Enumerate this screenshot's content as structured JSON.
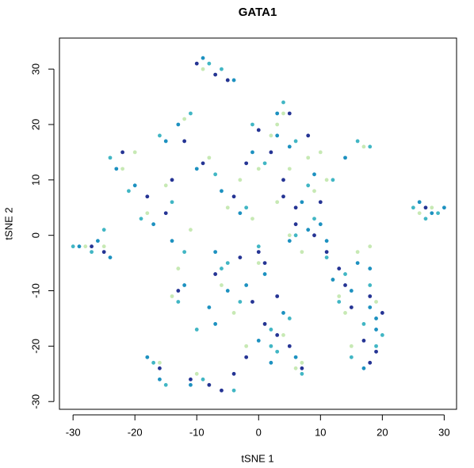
{
  "chart_data": {
    "type": "scatter",
    "title": "GATA1",
    "x_label": "tSNE 1",
    "y_label": "tSNE 2",
    "xlim": [
      -32.2,
      32.0
    ],
    "ylim": [
      -31.4,
      35.6
    ],
    "xticks": [
      -30,
      -20,
      -10,
      0,
      10,
      20,
      30
    ],
    "yticks": [
      -30,
      -20,
      -10,
      0,
      10,
      20,
      30
    ],
    "grid": false,
    "series": [
      {
        "color": "#c7e9b4",
        "x": [
          -9,
          -7,
          -5,
          -22,
          -15,
          -18,
          -12,
          -8,
          -3,
          2,
          5,
          7,
          9,
          -4,
          0,
          3,
          12,
          15,
          17,
          -25,
          -28,
          -14,
          -10,
          6,
          4,
          -1,
          -6,
          14,
          19,
          18,
          3,
          5,
          -16,
          -11,
          -2,
          8,
          10,
          16,
          1,
          -8,
          26,
          28,
          -20,
          -13,
          0,
          4,
          7,
          -5,
          11,
          13
        ],
        "y": [
          30,
          29,
          28,
          12,
          9,
          4,
          21,
          14,
          10,
          18,
          12,
          -3,
          8,
          -14,
          -5,
          20,
          -8,
          -20,
          16,
          -2,
          -2,
          -11,
          -25,
          -24,
          -18,
          3,
          -9,
          -14,
          -12,
          -2,
          6,
          0,
          -23,
          1,
          -20,
          14,
          15,
          -3,
          -16,
          -27,
          4,
          5,
          15,
          -6,
          12,
          22,
          -23,
          5,
          10,
          -11
        ]
      },
      {
        "color": "#41b6c4",
        "x": [
          -8,
          -6,
          -24,
          -21,
          -16,
          -14,
          -19,
          -11,
          -7,
          -2,
          1,
          4,
          6,
          8,
          -5,
          -3,
          0,
          2,
          11,
          13,
          16,
          18,
          19,
          17,
          15,
          -27,
          -30,
          -25,
          -13,
          -12,
          -15,
          -9,
          3,
          5,
          7,
          -4,
          27,
          25,
          29,
          -17,
          -6,
          9,
          12,
          14,
          20,
          18,
          -1,
          2,
          6,
          -10
        ],
        "y": [
          31,
          30,
          14,
          8,
          18,
          6,
          3,
          22,
          11,
          5,
          13,
          24,
          17,
          9,
          -5,
          -12,
          -2,
          -17,
          -4,
          -12,
          17,
          -9,
          -20,
          -16,
          -22,
          -3,
          -2,
          1,
          -12,
          -3,
          -27,
          -26,
          -21,
          -15,
          -25,
          -28,
          3,
          5,
          4,
          -23,
          -6,
          3,
          10,
          -7,
          -18,
          16,
          20,
          -20,
          0,
          -17
        ]
      },
      {
        "color": "#1d91c0",
        "x": [
          -9,
          -4,
          -23,
          -20,
          -15,
          -17,
          -13,
          -10,
          -6,
          -1,
          3,
          5,
          7,
          9,
          -7,
          -2,
          1,
          4,
          10,
          12,
          14,
          16,
          19,
          18,
          17,
          -26,
          -29,
          -24,
          -12,
          -14,
          -16,
          -11,
          -7,
          0,
          2,
          6,
          26,
          28,
          30,
          -18,
          -5,
          8,
          11,
          15,
          19,
          18,
          3,
          5,
          -3,
          -8
        ],
        "y": [
          32,
          28,
          12,
          9,
          17,
          2,
          20,
          12,
          8,
          15,
          22,
          16,
          6,
          11,
          -3,
          -9,
          -7,
          -14,
          2,
          -8,
          14,
          -5,
          -17,
          -13,
          -24,
          -1,
          -2,
          -4,
          -9,
          -1,
          -26,
          -27,
          -16,
          -19,
          -23,
          -22,
          6,
          4,
          5,
          -22,
          -10,
          1,
          -1,
          -10,
          -15,
          -6,
          18,
          -1,
          4,
          -13
        ]
      },
      {
        "color": "#253494",
        "x": [
          -10,
          -7,
          -5,
          -22,
          -18,
          -14,
          -12,
          -9,
          -4,
          0,
          2,
          4,
          5,
          6,
          8,
          -3,
          -1,
          1,
          3,
          9,
          11,
          13,
          15,
          17,
          19,
          20,
          18,
          -25,
          -27,
          -13,
          -16,
          -11,
          -8,
          -6,
          -4,
          -2,
          1,
          3,
          5,
          7,
          27,
          -15,
          -2,
          6,
          10,
          14,
          18,
          4,
          -7,
          0
        ],
        "y": [
          31,
          29,
          28,
          15,
          7,
          10,
          17,
          13,
          7,
          19,
          15,
          7,
          22,
          5,
          18,
          -4,
          -12,
          -5,
          -11,
          0,
          -3,
          -6,
          -13,
          -19,
          -21,
          -14,
          -23,
          -3,
          -2,
          -10,
          -24,
          -26,
          -27,
          -28,
          -25,
          -22,
          -16,
          -18,
          -20,
          -24,
          5,
          4,
          13,
          2,
          6,
          -9,
          -11,
          10,
          -7,
          -3
        ]
      }
    ]
  }
}
